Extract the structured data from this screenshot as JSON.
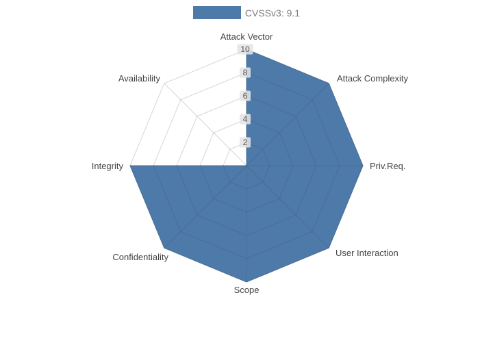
{
  "legend": {
    "label": "CVSSv3: 9.1"
  },
  "chart_data": {
    "type": "radar",
    "title": "CVSSv3: 9.1",
    "categories": [
      "Attack Vector",
      "Attack Complexity",
      "Priv.Req.",
      "User Interaction",
      "Scope",
      "Confidentiality",
      "Integrity",
      "Availability"
    ],
    "series": [
      {
        "name": "CVSSv3: 9.1",
        "values": [
          10,
          10,
          10,
          10,
          10,
          10,
          10,
          0
        ]
      }
    ],
    "radial_ticks": [
      2,
      4,
      6,
      8,
      10
    ],
    "rlim": [
      0,
      10
    ],
    "grid": true,
    "legend_position": "top-center",
    "colors": {
      "fill": "#4d7aa9",
      "grid": "#cccccc",
      "axis_label": "#444444",
      "tick_text": "#555555",
      "tick_bg": "#e4e4e4",
      "legend_text": "#7d7d7d"
    }
  }
}
